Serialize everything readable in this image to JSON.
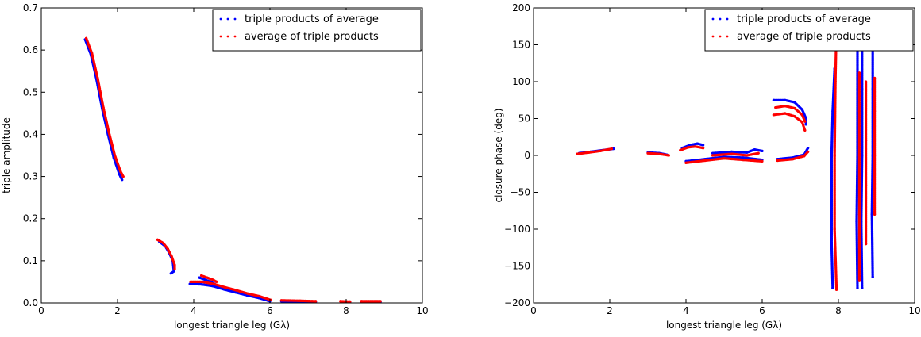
{
  "chart_data": [
    {
      "type": "scatter",
      "xlabel": "longest triangle leg (Gλ)",
      "ylabel": "triple amplitude",
      "xlim": [
        0,
        10
      ],
      "ylim": [
        0,
        0.7
      ],
      "xticks": [
        "0",
        "2",
        "4",
        "6",
        "8",
        "10"
      ],
      "yticks": [
        "0.0",
        "0.1",
        "0.2",
        "0.3",
        "0.4",
        "0.5",
        "0.6",
        "0.7"
      ],
      "grid": false,
      "legend_position": "top-right",
      "series": [
        {
          "name": "triple products of average",
          "color": "#0000ff",
          "segments": [
            [
              [
                1.15,
                0.625
              ],
              [
                1.3,
                0.59
              ],
              [
                1.45,
                0.53
              ],
              [
                1.6,
                0.46
              ],
              [
                1.75,
                0.4
              ],
              [
                1.9,
                0.345
              ],
              [
                2.05,
                0.305
              ],
              [
                2.12,
                0.292
              ]
            ],
            [
              [
                3.1,
                0.145
              ],
              [
                3.25,
                0.135
              ],
              [
                3.35,
                0.12
              ],
              [
                3.45,
                0.1
              ],
              [
                3.48,
                0.075
              ],
              [
                3.4,
                0.07
              ]
            ],
            [
              [
                3.9,
                0.045
              ],
              [
                4.2,
                0.044
              ],
              [
                4.5,
                0.04
              ],
              [
                4.8,
                0.032
              ],
              [
                5.1,
                0.025
              ],
              [
                5.4,
                0.018
              ],
              [
                5.7,
                0.012
              ],
              [
                6.0,
                0.004
              ]
            ],
            [
              [
                4.15,
                0.06
              ],
              [
                4.3,
                0.055
              ],
              [
                4.45,
                0.05
              ],
              [
                4.55,
                0.045
              ]
            ],
            [
              [
                6.3,
                0.004
              ],
              [
                6.8,
                0.003
              ],
              [
                7.2,
                0.002
              ]
            ],
            [
              [
                7.9,
                0.002
              ],
              [
                8.1,
                0.001
              ]
            ],
            [
              [
                8.4,
                0.002
              ],
              [
                8.9,
                0.002
              ]
            ]
          ]
        },
        {
          "name": "average of triple products",
          "color": "#ff0000",
          "segments": [
            [
              [
                1.18,
                0.628
              ],
              [
                1.33,
                0.592
              ],
              [
                1.48,
                0.533
              ],
              [
                1.63,
                0.463
              ],
              [
                1.78,
                0.403
              ],
              [
                1.93,
                0.35
              ],
              [
                2.08,
                0.312
              ],
              [
                2.15,
                0.3
              ]
            ],
            [
              [
                3.05,
                0.15
              ],
              [
                3.2,
                0.142
              ],
              [
                3.32,
                0.128
              ],
              [
                3.42,
                0.11
              ],
              [
                3.5,
                0.09
              ],
              [
                3.5,
                0.08
              ]
            ],
            [
              [
                3.92,
                0.05
              ],
              [
                4.22,
                0.05
              ],
              [
                4.52,
                0.045
              ],
              [
                4.82,
                0.037
              ],
              [
                5.12,
                0.03
              ],
              [
                5.42,
                0.022
              ],
              [
                5.72,
                0.016
              ],
              [
                6.02,
                0.007
              ]
            ],
            [
              [
                4.2,
                0.065
              ],
              [
                4.35,
                0.06
              ],
              [
                4.5,
                0.055
              ],
              [
                4.6,
                0.05
              ]
            ],
            [
              [
                6.3,
                0.006
              ],
              [
                6.8,
                0.005
              ],
              [
                7.2,
                0.004
              ]
            ],
            [
              [
                7.85,
                0.004
              ],
              [
                8.1,
                0.003
              ]
            ],
            [
              [
                8.4,
                0.004
              ],
              [
                8.9,
                0.004
              ]
            ]
          ]
        }
      ]
    },
    {
      "type": "scatter",
      "xlabel": "longest triangle leg (Gλ)",
      "ylabel": "closure phase (deg)",
      "xlim": [
        0,
        10
      ],
      "ylim": [
        -200,
        200
      ],
      "xticks": [
        "0",
        "2",
        "4",
        "6",
        "8",
        "10"
      ],
      "yticks": [
        "−200",
        "−150",
        "−100",
        "−50",
        "0",
        "50",
        "100",
        "150",
        "200"
      ],
      "grid": false,
      "legend_position": "top-right",
      "series": [
        {
          "name": "triple products of average",
          "color": "#0000ff",
          "segments": [
            [
              [
                1.2,
                3
              ],
              [
                1.5,
                5
              ],
              [
                1.8,
                7
              ],
              [
                2.1,
                9
              ]
            ],
            [
              [
                3.0,
                4
              ],
              [
                3.3,
                3
              ],
              [
                3.5,
                1
              ]
            ],
            [
              [
                3.9,
                10
              ],
              [
                4.1,
                14
              ],
              [
                4.3,
                16
              ],
              [
                4.45,
                14
              ]
            ],
            [
              [
                4.0,
                -8
              ],
              [
                4.5,
                -5
              ],
              [
                5.0,
                -2
              ],
              [
                5.5,
                -3
              ],
              [
                6.0,
                -6
              ]
            ],
            [
              [
                4.7,
                3
              ],
              [
                5.2,
                5
              ],
              [
                5.6,
                4
              ],
              [
                5.8,
                8
              ],
              [
                6.0,
                6
              ]
            ],
            [
              [
                6.4,
                -5
              ],
              [
                6.8,
                -3
              ],
              [
                7.1,
                1
              ],
              [
                7.2,
                10
              ]
            ],
            [
              [
                6.3,
                75
              ],
              [
                6.6,
                75
              ],
              [
                6.85,
                72
              ],
              [
                7.05,
                62
              ],
              [
                7.15,
                50
              ],
              [
                7.15,
                42
              ]
            ],
            [
              [
                7.85,
                -180
              ],
              [
                7.82,
                -120
              ],
              [
                7.82,
                -60
              ],
              [
                7.82,
                0
              ],
              [
                7.85,
                60
              ],
              [
                7.9,
                118
              ]
            ],
            [
              [
                8.5,
                -180
              ],
              [
                8.48,
                -90
              ],
              [
                8.5,
                0
              ],
              [
                8.5,
                90
              ],
              [
                8.5,
                180
              ]
            ],
            [
              [
                8.62,
                -180
              ],
              [
                8.6,
                -90
              ],
              [
                8.62,
                0
              ],
              [
                8.62,
                90
              ],
              [
                8.62,
                180
              ]
            ],
            [
              [
                8.9,
                -165
              ],
              [
                8.88,
                -80
              ],
              [
                8.9,
                0
              ],
              [
                8.9,
                90
              ],
              [
                8.9,
                180
              ]
            ]
          ]
        },
        {
          "name": "average of triple products",
          "color": "#ff0000",
          "segments": [
            [
              [
                1.15,
                2
              ],
              [
                1.45,
                4
              ],
              [
                1.75,
                6
              ],
              [
                2.05,
                9
              ]
            ],
            [
              [
                3.0,
                3
              ],
              [
                3.3,
                2
              ],
              [
                3.55,
                0
              ]
            ],
            [
              [
                3.85,
                7
              ],
              [
                4.05,
                11
              ],
              [
                4.25,
                12
              ],
              [
                4.45,
                10
              ]
            ],
            [
              [
                4.0,
                -10
              ],
              [
                4.5,
                -7
              ],
              [
                5.0,
                -4
              ],
              [
                5.5,
                -6
              ],
              [
                6.0,
                -8
              ]
            ],
            [
              [
                4.7,
                0
              ],
              [
                5.2,
                2
              ],
              [
                5.6,
                0
              ],
              [
                5.9,
                3
              ]
            ],
            [
              [
                6.4,
                -7
              ],
              [
                6.8,
                -5
              ],
              [
                7.1,
                -1
              ],
              [
                7.2,
                5
              ]
            ],
            [
              [
                6.35,
                65
              ],
              [
                6.6,
                67
              ],
              [
                6.85,
                64
              ],
              [
                7.05,
                55
              ],
              [
                7.12,
                46
              ]
            ],
            [
              [
                6.3,
                55
              ],
              [
                6.6,
                57
              ],
              [
                6.85,
                53
              ],
              [
                7.05,
                45
              ],
              [
                7.12,
                34
              ]
            ],
            [
              [
                7.95,
                -182
              ],
              [
                7.9,
                -100
              ],
              [
                7.9,
                0
              ],
              [
                7.92,
                100
              ],
              [
                7.95,
                180
              ]
            ],
            [
              [
                8.55,
                -170
              ],
              [
                8.55,
                -80
              ],
              [
                8.55,
                0
              ],
              [
                8.55,
                60
              ],
              [
                8.55,
                112
              ]
            ],
            [
              [
                8.72,
                -120
              ],
              [
                8.72,
                -40
              ],
              [
                8.72,
                20
              ],
              [
                8.72,
                100
              ]
            ],
            [
              [
                8.95,
                -80
              ],
              [
                8.95,
                0
              ],
              [
                8.95,
                60
              ],
              [
                8.95,
                105
              ]
            ]
          ]
        }
      ]
    }
  ]
}
